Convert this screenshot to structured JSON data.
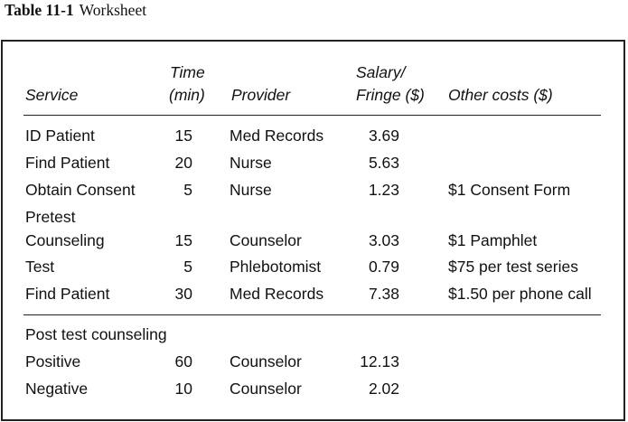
{
  "caption": {
    "number": "Table 11-1",
    "title": "Worksheet"
  },
  "headers": {
    "service": "Service",
    "time_line1": "Time",
    "time_line2": "(min)",
    "provider": "Provider",
    "salary_line1": "Salary/",
    "salary_line2": "Fringe ($)",
    "other": "Other costs ($)"
  },
  "rows": [
    {
      "service": "ID Patient",
      "time": "15",
      "provider": "Med Records",
      "salary": "3.69",
      "other": ""
    },
    {
      "service": "Find Patient",
      "time": "20",
      "provider": "Nurse",
      "salary": "5.63",
      "other": ""
    },
    {
      "service": "Obtain Consent",
      "time": "5",
      "provider": "Nurse",
      "salary": "1.23",
      "other": "$1 Consent Form"
    },
    {
      "service_line1": "Pretest",
      "service": "Counseling",
      "time": "15",
      "provider": "Counselor",
      "salary": "3.03",
      "other": "$1 Pamphlet"
    },
    {
      "service": "Test",
      "time": "5",
      "provider": "Phlebotomist",
      "salary": "0.79",
      "other": "$75 per test series"
    },
    {
      "service": "Find Patient",
      "time": "30",
      "provider": "Med Records",
      "salary": "7.38",
      "other": "$1.50 per phone call"
    }
  ],
  "post_section": {
    "label": "Post test counseling",
    "rows": [
      {
        "service": "Positive",
        "time": "60",
        "provider": "Counselor",
        "salary": "12.13",
        "other": ""
      },
      {
        "service": "Negative",
        "time": "10",
        "provider": "Counselor",
        "salary": "2.02",
        "other": ""
      }
    ]
  }
}
